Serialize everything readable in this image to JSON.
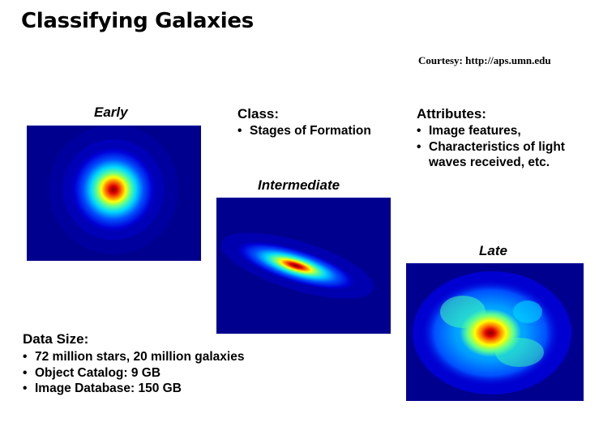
{
  "title": "Classifying Galaxies",
  "courtesy": "Courtesy: http://aps.umn.edu",
  "class_section": {
    "heading": "Class:",
    "items": [
      "Stages of Formation"
    ]
  },
  "attributes_section": {
    "heading": "Attributes:",
    "items": [
      "Image features,",
      "Characteristics of light",
      "waves received, etc."
    ]
  },
  "data_size_section": {
    "heading": "Data Size:",
    "items": [
      "72 million stars, 20 million galaxies",
      "Object Catalog: 9 GB",
      "Image Database: 150 GB"
    ]
  },
  "galaxies": {
    "early": {
      "caption": "Early"
    },
    "intermediate": {
      "caption": "Intermediate"
    },
    "late": {
      "caption": "Late"
    }
  },
  "colors": {
    "background_deep": "#00008f",
    "background_blue": "#0000d8",
    "mid_blue": "#0050ff",
    "cyan": "#00d8ff",
    "green": "#60ff90",
    "yellow": "#ffff00",
    "orange": "#ff8000",
    "red": "#e00000",
    "dark_red": "#800000"
  }
}
